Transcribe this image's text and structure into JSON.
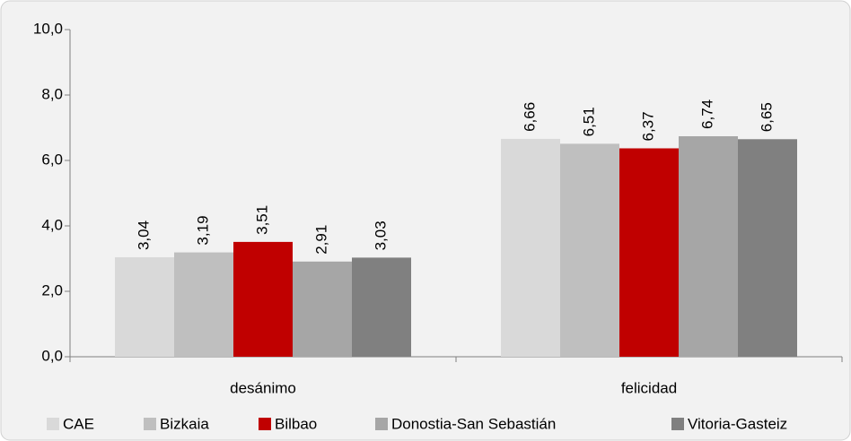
{
  "chart_data": {
    "type": "bar",
    "categories": [
      "desánimo",
      "felicidad"
    ],
    "series": [
      {
        "name": "CAE",
        "color": "#d9d9d9",
        "values": [
          3.04,
          6.66
        ],
        "value_labels": [
          "3,04",
          "6,66"
        ]
      },
      {
        "name": "Bizkaia",
        "color": "#bfbfbf",
        "values": [
          3.19,
          6.51
        ],
        "value_labels": [
          "3,19",
          "6,51"
        ]
      },
      {
        "name": "Bilbao",
        "color": "#c00000",
        "values": [
          3.51,
          6.37
        ],
        "value_labels": [
          "3,51",
          "6,37"
        ]
      },
      {
        "name": "Donostia-San Sebastián",
        "color": "#a6a6a6",
        "values": [
          2.91,
          6.74
        ],
        "value_labels": [
          "2,91",
          "6,74"
        ]
      },
      {
        "name": "Vitoria-Gasteiz",
        "color": "#808080",
        "values": [
          3.03,
          6.65
        ],
        "value_labels": [
          "3,03",
          "6,65"
        ]
      }
    ],
    "ylim": [
      0,
      10
    ],
    "yticks": [
      {
        "value": 0,
        "label": "0,0"
      },
      {
        "value": 2,
        "label": "2,0"
      },
      {
        "value": 4,
        "label": "4,0"
      },
      {
        "value": 6,
        "label": "6,0"
      },
      {
        "value": 8,
        "label": "8,0"
      },
      {
        "value": 10,
        "label": "10,0"
      }
    ],
    "legend": "bottom",
    "grid": false
  }
}
